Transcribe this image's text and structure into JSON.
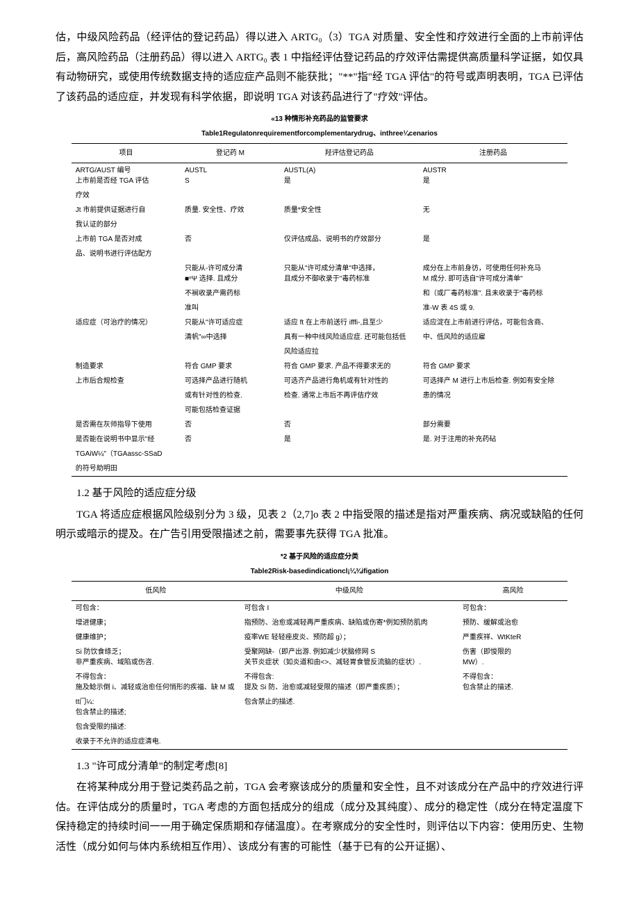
{
  "para1": "估，中级风险药品（经评估的登记药品）得以进入 ARTG₀（3）TGA 对质量、安全性和疗效进行全面的上市前评估后，高风险药品（注册药品）得以进入 ARTG₀ 表 1 中指经评估登记药品的疗效评估需提供高质量科学证据，如仅具有动物研究，或使用传统数据支持的适应症产品则不能获批；\"**\"指\"经 TGA 评估\"的符号或声明表明，TGA 已评估了该药品的适应症，并发现有科学依据，即说明 TGA 对该药品进行了\"疗效\"评估。",
  "table1": {
    "caption": "«13 种情形补充药品的监管要求",
    "subcaption": "Table1Regulatonrequirementforcomplementarydrug、inthree¼cenarios",
    "headers": [
      "项目",
      "登记药 M",
      "羟评估登记药品",
      "注册药品"
    ],
    "rows": [
      {
        "c1": "ARTG/AUST 编号\n上市前是否经 TGA 评估",
        "c2": "AUSTL\nS",
        "c3": "AUSTL(A)\n是",
        "c4": "AUSTR\n是"
      },
      {
        "c1": "疗效",
        "c2": "",
        "c3": "",
        "c4": ""
      },
      {
        "c1": "Jt 市前提供证据进行自",
        "c2": "质量. 安全性、疗效",
        "c3": "质量*安全性",
        "c4": "无"
      },
      {
        "c1": "我认证的部分",
        "c2": "",
        "c3": "",
        "c4": ""
      },
      {
        "c1": "上市前 TGA 是否对成",
        "c2": "否",
        "c3": "仅评估成品、说明书的疗效部分",
        "c4": "是"
      },
      {
        "c1": "品、说明书进行评估配方",
        "c2": "",
        "c3": "",
        "c4": ""
      },
      {
        "c1": "",
        "c2": "只能从-许可成分清\n■ⁿΨ 选择. 且成分",
        "c3": "只能从\"许可成分清单\"中选择，\n且成分不御收录于\"毒药标准",
        "c4": "成分在上市前身彷，可使用任何补充马\nM 成分. 即可选自\"许可成分清单\""
      },
      {
        "c1": "",
        "c2": "不裥收录产需药标",
        "c3": "",
        "c4": "和（或厂毒药标准\". 且未收录于\"毒药标"
      },
      {
        "c1": "",
        "c2": "准叫",
        "c3": "",
        "c4": "准-W 表 4S 或 9."
      },
      {
        "c1": "适应症（可治疗的情况）",
        "c2": "只能从\"许可适应症",
        "c3": "适应 ft 在上市前送行 ifffi-,且至少",
        "c4": "适应淀在上市前进行评估，可能包含商、"
      },
      {
        "c1": "",
        "c2": "清帆\"∞中选择",
        "c3": "具有一种中线风险适应症. 还可能包括低",
        "c4": "中、低风险的适应雇"
      },
      {
        "c1": "",
        "c2": "",
        "c3": "风险适应拉",
        "c4": ""
      },
      {
        "c1": "制造要求",
        "c2": "符合 GMP 要求",
        "c3": "符合 GMP 要求. 产品不得要求无的",
        "c4": "符合 GMP 要求"
      },
      {
        "c1": "上市后合规检查",
        "c2": "可选择产品进行随机",
        "c3": "可选齐产品进行角机或有针对性的",
        "c4": "可选择产 M 进行上市后检查. 例如有安全除"
      },
      {
        "c1": "",
        "c2": "或有针对性的检查.",
        "c3": "检查. 通常上市后不再评佶疗效",
        "c4": "患的情况"
      },
      {
        "c1": "",
        "c2": "可能包括检查证据",
        "c3": "",
        "c4": ""
      },
      {
        "c1": "是否需在灰师指导下使用",
        "c2": "否",
        "c3": "否",
        "c4": "部分需要"
      },
      {
        "c1": "是否能在说明书中显示\"经",
        "c2": "否",
        "c3": "是",
        "c4": "是. 对于注用的补充药砧"
      },
      {
        "c1": "TGAiW¼\"（TGAassc-SSaD",
        "c2": "",
        "c3": "",
        "c4": ""
      },
      {
        "c1": "的符号助明田",
        "c2": "",
        "c3": "",
        "c4": ""
      }
    ]
  },
  "heading12": "1.2 基于风险的适应症分级",
  "para2": "TGA 将适应症根据风险级别分为 3 级，见表 2（2,7]o 表 2 中指受限的描述是指对严重疾病、病况或缺陷的任何明示或暗示的提及。在广告引用受限描述之前，需要事先获得 TGA 批准。",
  "table2": {
    "caption": "*2 基于风险的适应症分类",
    "subcaption": "Table2Risk-basedindicationcl¡¼¾ifigation",
    "headers": [
      "低风险",
      "中级风险",
      "高风险"
    ],
    "rows": [
      {
        "c1": "可包含：",
        "c2": "可包含 I",
        "c3": "可包含："
      },
      {
        "c1": "增进健康；",
        "c2": "指预防、治愈或减轻再严重疾病、缺陷或伤寄*例如预防肌肉",
        "c3": "预防、缓解或治愈"
      },
      {
        "c1": "健康维护；",
        "c2": "疫率WE 轻轻痤皮炎、预防超 g）；",
        "c3": "严重疾祥、WtKteR"
      },
      {
        "c1": "Si 防饮食绦乏；\n非严重疾病、域陷或伤咨.",
        "c2": "受聚网缺-（即产出游. 例如减少状脑修网 S\n关节炎症状（如炎道和由<>、减轻胃食管反流脑的症状）.",
        "c3": "伤害（即悛限的\nMW）."
      },
      {
        "c1": "不得包含：\n施及鲶示倒 i、减轻或治愈任何悄形的疾福、缺 M 或",
        "c2": "不得包含:\n提及 Si 防、治愈或减轻受限的描述（即严重疾质）；",
        "c3": "不得包含：\n包含禁止的描述."
      },
      {
        "c1": "tt门¼:\n包含禁止的描述;",
        "c2": "包含禁止的描述.",
        "c3": ""
      },
      {
        "c1": "包含受限的描述:",
        "c2": "",
        "c3": ""
      },
      {
        "c1": "收录于不允许的适应症清电.",
        "c2": "",
        "c3": ""
      }
    ]
  },
  "heading13": "1.3 \"许可成分清单\"的制定考虑[8]",
  "para3": "在将某种成分用于登记类药品之前，TGA 会考察该成分的质量和安全性，且不对该成分在产品中的疗效进行评估。在评估成分的质量时，TGA 考虑的方面包括成分的组成（成分及其纯度）、成分的稳定性（成分在特定温度下保持稳定的持续时间一一用于确定保质期和存储温度）。在考察成分的安全性时，则评估以下内容：使用历史、生物活性（成分如何与体内系统相互作用）、该成分有害的可能性（基于已有的公开证据）、"
}
